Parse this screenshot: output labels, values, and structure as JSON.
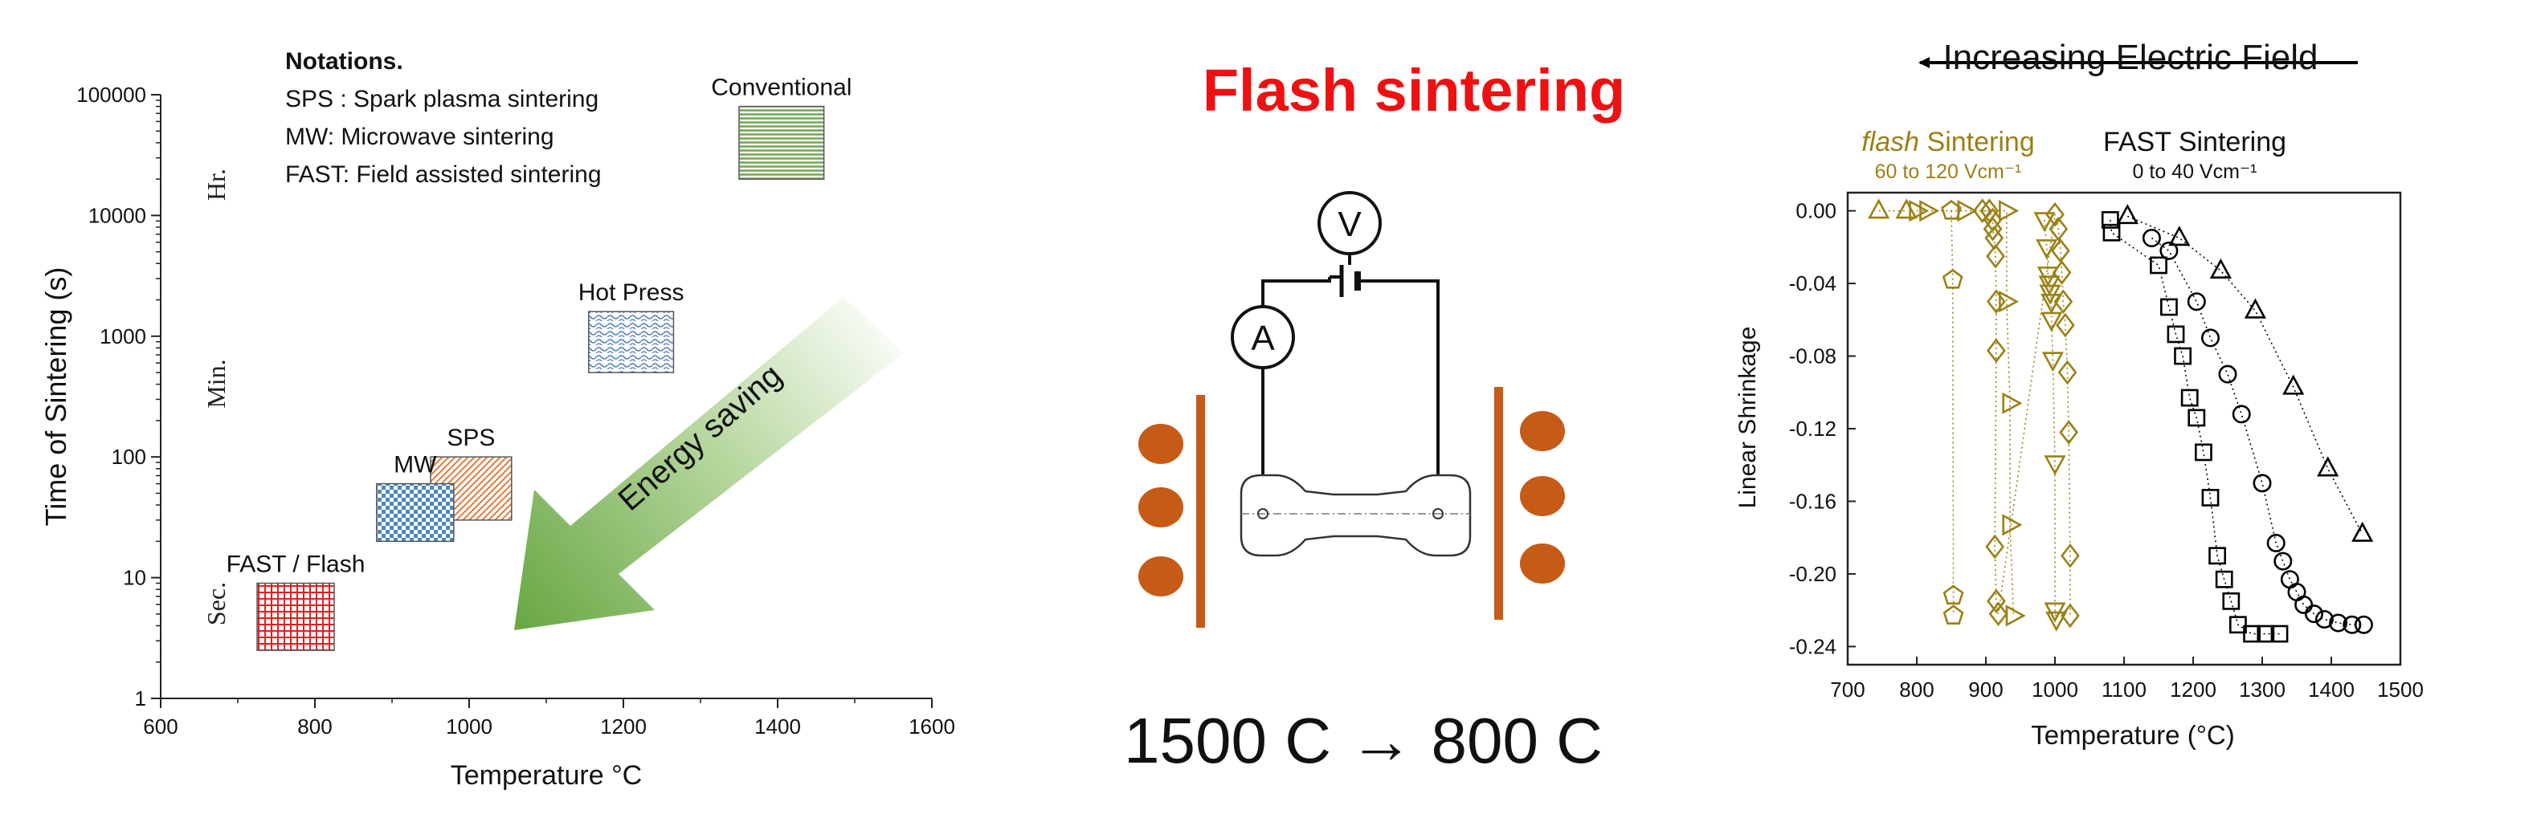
{
  "left_chart": {
    "ylabel": "Time of Sintering (s)",
    "xlabel": "Temperature °C",
    "y_ticks": [
      "1",
      "10",
      "100",
      "1000",
      "10000",
      "100000"
    ],
    "x_ticks": [
      "600",
      "800",
      "1000",
      "1200",
      "1400",
      "1600"
    ],
    "time_labels": {
      "hr": "Hr.",
      "min": "Min.",
      "sec": "Sec."
    },
    "notations": {
      "title": "Notations.",
      "lines": [
        "SPS : Spark plasma sintering",
        "MW: Microwave sintering",
        "FAST: Field assisted sintering"
      ]
    },
    "regions": [
      {
        "label": "Conventional",
        "t_min": 1350,
        "t_max": 1460,
        "s_min": 20000,
        "s_max": 80000,
        "pattern": "h-green"
      },
      {
        "label": "Hot Press",
        "t_min": 1155,
        "t_max": 1265,
        "s_min": 500,
        "s_max": 1600,
        "pattern": "wave-blue"
      },
      {
        "label": "SPS",
        "t_min": 950,
        "t_max": 1055,
        "s_min": 30,
        "s_max": 100,
        "pattern": "diag-orange"
      },
      {
        "label": "MW",
        "t_min": 880,
        "t_max": 980,
        "s_min": 20,
        "s_max": 60,
        "pattern": "check-blue"
      },
      {
        "label": "FAST / Flash",
        "t_min": 725,
        "t_max": 825,
        "s_min": 2.5,
        "s_max": 9,
        "pattern": "grid-red"
      }
    ],
    "arrow_label": "Energy saving"
  },
  "middle": {
    "title": "Flash sintering",
    "voltmeter": "V",
    "ammeter": "A",
    "caption": "1500 C → 800 C",
    "title_color": "#ee1111",
    "electrode_color": "#c65a17"
  },
  "right_chart": {
    "field_label": "Increasing Electric Field",
    "flash_title_italic": "flash",
    "flash_title_rest": " Sintering",
    "flash_range": "60 to 120 Vcm⁻¹",
    "fast_title": "FAST Sintering",
    "fast_range": "0 to 40 Vcm⁻¹",
    "ylabel": "Linear Shrinkage",
    "xlabel": "Temperature (°C)",
    "x_ticks": [
      "700",
      "800",
      "900",
      "1000",
      "1100",
      "1200",
      "1300",
      "1400",
      "1500"
    ],
    "y_ticks": [
      "0.00",
      "-0.04",
      "-0.08",
      "-0.12",
      "-0.16",
      "-0.20",
      "-0.24"
    ],
    "flash_color": "#9a8015",
    "fast_color": "#000000"
  },
  "chart_data": [
    {
      "type": "scatter",
      "xlabel": "Temperature (°C)",
      "ylabel": "Linear Shrinkage",
      "xlim": [
        700,
        1500
      ],
      "ylim": [
        -0.25,
        0.01
      ],
      "series": [
        {
          "group": "flash",
          "marker": "triangle-up",
          "points": [
            [
              745,
              0
            ],
            [
              785,
              0
            ]
          ]
        },
        {
          "group": "flash",
          "marker": "triangle-right",
          "points": [
            [
              800,
              0
            ],
            [
              815,
              0
            ],
            [
              870,
              0
            ],
            [
              930,
              0
            ],
            [
              930,
              -0.05
            ],
            [
              935,
              -0.106
            ],
            [
              935,
              -0.173
            ],
            [
              940,
              -0.223
            ]
          ]
        },
        {
          "group": "flash",
          "marker": "pentagon",
          "points": [
            [
              850,
              0
            ],
            [
              852,
              -0.038
            ],
            [
              853,
              -0.212
            ],
            [
              853,
              -0.223
            ]
          ]
        },
        {
          "group": "flash",
          "marker": "diamond",
          "points": [
            [
              895,
              0
            ],
            [
              905,
              0
            ],
            [
              910,
              -0.005
            ],
            [
              910,
              -0.01
            ],
            [
              912,
              -0.015
            ],
            [
              914,
              -0.025
            ],
            [
              915,
              -0.05
            ],
            [
              915,
              -0.077
            ],
            [
              913,
              -0.185
            ],
            [
              915,
              -0.215
            ],
            [
              918,
              -0.222
            ],
            [
              1000,
              -0.002
            ],
            [
              1005,
              -0.01
            ],
            [
              1008,
              -0.022
            ],
            [
              1010,
              -0.034
            ],
            [
              1012,
              -0.05
            ],
            [
              1015,
              -0.063
            ],
            [
              1018,
              -0.089
            ],
            [
              1020,
              -0.122
            ],
            [
              1022,
              -0.19
            ],
            [
              1022,
              -0.223
            ]
          ]
        },
        {
          "group": "flash",
          "marker": "triangle-down",
          "points": [
            [
              985,
              -0.005
            ],
            [
              988,
              -0.02
            ],
            [
              990,
              -0.035
            ],
            [
              992,
              -0.04
            ],
            [
              993,
              -0.045
            ],
            [
              995,
              -0.05
            ],
            [
              995,
              -0.06
            ],
            [
              997,
              -0.082
            ],
            [
              1000,
              -0.139
            ],
            [
              1000,
              -0.22
            ],
            [
              1002,
              -0.225
            ]
          ]
        },
        {
          "group": "fast",
          "marker": "square",
          "points": [
            [
              1080,
              -0.005
            ],
            [
              1082,
              -0.012
            ],
            [
              1150,
              -0.03
            ],
            [
              1165,
              -0.053
            ],
            [
              1175,
              -0.068
            ],
            [
              1185,
              -0.08
            ],
            [
              1195,
              -0.103
            ],
            [
              1205,
              -0.114
            ],
            [
              1215,
              -0.133
            ],
            [
              1225,
              -0.158
            ],
            [
              1235,
              -0.19
            ],
            [
              1245,
              -0.203
            ],
            [
              1255,
              -0.215
            ],
            [
              1265,
              -0.228
            ],
            [
              1285,
              -0.233
            ],
            [
              1305,
              -0.233
            ],
            [
              1325,
              -0.233
            ]
          ]
        },
        {
          "group": "fast",
          "marker": "circle",
          "points": [
            [
              1140,
              -0.015
            ],
            [
              1165,
              -0.022
            ],
            [
              1205,
              -0.05
            ],
            [
              1225,
              -0.07
            ],
            [
              1250,
              -0.09
            ],
            [
              1270,
              -0.112
            ],
            [
              1300,
              -0.15
            ],
            [
              1320,
              -0.183
            ],
            [
              1330,
              -0.193
            ],
            [
              1340,
              -0.203
            ],
            [
              1350,
              -0.21
            ],
            [
              1360,
              -0.217
            ],
            [
              1375,
              -0.222
            ],
            [
              1390,
              -0.225
            ],
            [
              1410,
              -0.227
            ],
            [
              1430,
              -0.228
            ],
            [
              1447,
              -0.228
            ]
          ]
        },
        {
          "group": "fast",
          "marker": "triangle-up",
          "points": [
            [
              1105,
              -0.003
            ],
            [
              1180,
              -0.015
            ],
            [
              1240,
              -0.033
            ],
            [
              1290,
              -0.055
            ],
            [
              1345,
              -0.097
            ],
            [
              1395,
              -0.142
            ],
            [
              1445,
              -0.178
            ]
          ]
        }
      ]
    }
  ]
}
